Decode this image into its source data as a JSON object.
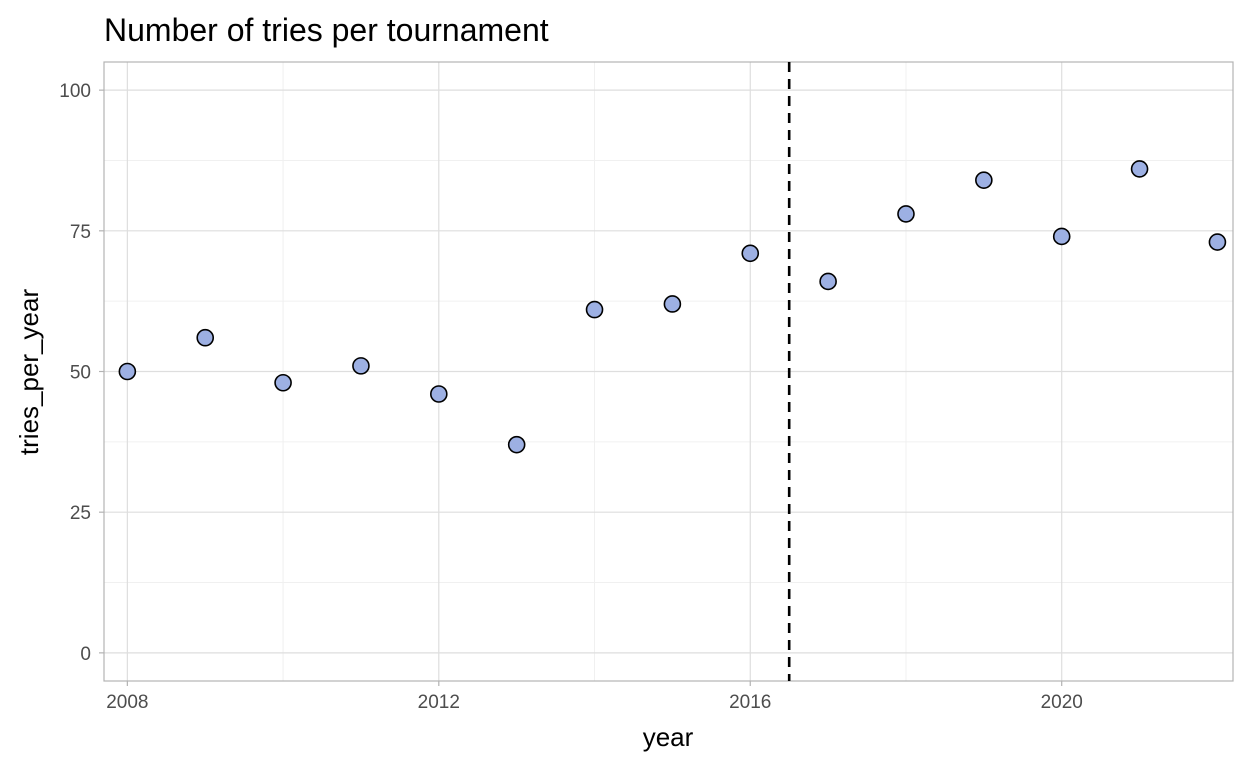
{
  "chart_data": {
    "type": "scatter",
    "title": "Number of tries per tournament",
    "xlabel": "year",
    "ylabel": "tries_per_year",
    "xlim": [
      2007.7,
      2022.2
    ],
    "ylim": [
      -5,
      105
    ],
    "x_ticks": [
      2008,
      2012,
      2016,
      2020
    ],
    "y_ticks": [
      0,
      25,
      50,
      75,
      100
    ],
    "grid": true,
    "legend": "none",
    "vline": {
      "x": 2016.5,
      "style": "dashed",
      "color": "#000000"
    },
    "point_fill": "#9db0e3",
    "point_stroke": "#000000",
    "points": [
      {
        "x": 2008,
        "y": 50
      },
      {
        "x": 2009,
        "y": 56
      },
      {
        "x": 2010,
        "y": 48
      },
      {
        "x": 2011,
        "y": 51
      },
      {
        "x": 2012,
        "y": 46
      },
      {
        "x": 2013,
        "y": 37
      },
      {
        "x": 2014,
        "y": 61
      },
      {
        "x": 2015,
        "y": 62
      },
      {
        "x": 2016,
        "y": 71
      },
      {
        "x": 2017,
        "y": 66
      },
      {
        "x": 2018,
        "y": 78
      },
      {
        "x": 2019,
        "y": 84
      },
      {
        "x": 2020,
        "y": 74
      },
      {
        "x": 2021,
        "y": 86
      },
      {
        "x": 2022,
        "y": 73
      }
    ]
  }
}
